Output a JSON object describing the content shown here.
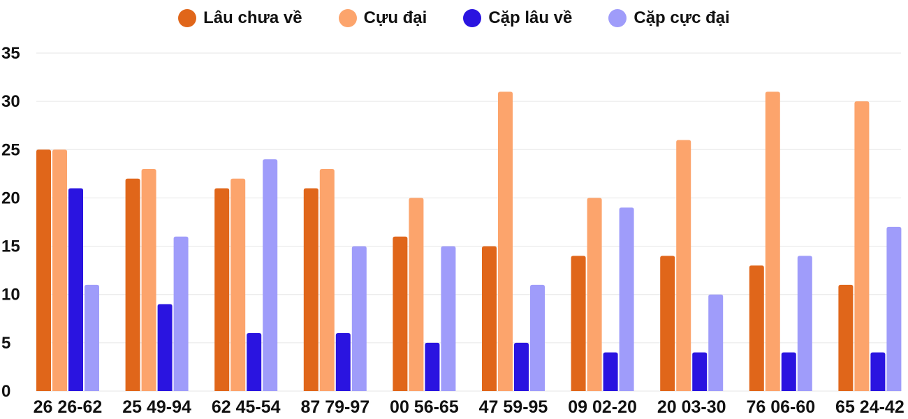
{
  "chart_data": {
    "type": "bar",
    "categories": [
      "26 26-62",
      "25 49-94",
      "62 45-54",
      "87 79-97",
      "00 56-65",
      "47 59-95",
      "09 02-20",
      "20 03-30",
      "76 06-60",
      "65 24-42"
    ],
    "series": [
      {
        "name": "Lâu chưa về",
        "color": "#e0661a",
        "values": [
          25,
          22,
          21,
          21,
          16,
          15,
          14,
          14,
          13,
          11
        ]
      },
      {
        "name": "Cựu đại",
        "color": "#fca46c",
        "values": [
          25,
          23,
          22,
          23,
          20,
          31,
          20,
          26,
          31,
          30
        ]
      },
      {
        "name": "Cặp lâu về",
        "color": "#2a14e0",
        "values": [
          21,
          9,
          6,
          6,
          5,
          5,
          4,
          4,
          4,
          4
        ]
      },
      {
        "name": "Cặp cực đại",
        "color": "#9f9cfa",
        "values": [
          11,
          16,
          24,
          15,
          15,
          11,
          19,
          10,
          14,
          17
        ]
      }
    ],
    "ylim": [
      0,
      35
    ],
    "yticks": [
      0,
      5,
      10,
      15,
      20,
      25,
      30,
      35
    ],
    "grid": true,
    "legend": "top-center",
    "title": "",
    "xlabel": "",
    "ylabel": ""
  }
}
